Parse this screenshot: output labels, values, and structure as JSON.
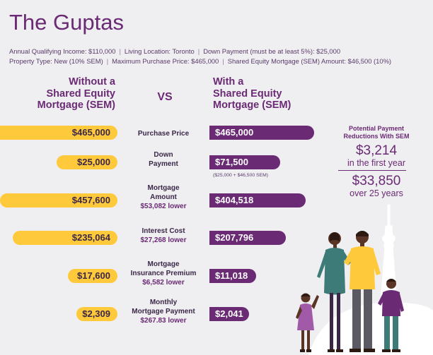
{
  "header": {
    "title": "The Guptas",
    "info_line_1": [
      "Annual Qualifying Income: $110,000",
      "Living Location: Toronto",
      "Down Payment (must be at least 5%): $25,000"
    ],
    "info_line_2": [
      "Property Type: New (10% SEM)",
      "Maximum Purchase Price: $465,000",
      "Shared Equity Mortgage (SEM) Amount: $46,500 (10%)"
    ],
    "separator": "|"
  },
  "columns": {
    "left_heading": [
      "Without a",
      "Shared Equity",
      "Mortgage (SEM)"
    ],
    "vs": "VS",
    "right_heading": [
      "With a",
      "Shared Equity",
      "Mortgage (SEM)"
    ]
  },
  "rows": [
    {
      "label": "Purchase Price",
      "without": "$465,000",
      "with": "$465,000",
      "difference": ""
    },
    {
      "label": "Down Payment",
      "without": "$25,000",
      "with": "$71,500",
      "difference": "",
      "note": "($25,000 + $46,500 SEM)"
    },
    {
      "label": "Mortgage Amount",
      "without": "$457,600",
      "with": "$404,518",
      "difference": "$53,082 lower"
    },
    {
      "label": "Interest Cost",
      "without": "$235,064",
      "with": "$207,796",
      "difference": "$27,268 lower"
    },
    {
      "label": "Mortgage Insurance Premium",
      "without": "$17,600",
      "with": "$11,018",
      "difference": "$6,582 lower"
    },
    {
      "label": "Monthly Mortgage Payment",
      "without": "$2,309",
      "with": "$2,041",
      "difference": "$267.83 lower"
    }
  ],
  "mid_labels": {
    "r0": [
      "Purchase Price"
    ],
    "r1": [
      "Down",
      "Payment"
    ],
    "r2": [
      "Mortgage",
      "Amount"
    ],
    "r3": [
      "Interest Cost"
    ],
    "r4": [
      "Mortgage",
      "Insurance Premium"
    ],
    "r5": [
      "Monthly",
      "Mortgage Payment"
    ]
  },
  "sidebar": {
    "heading": [
      "Potential Payment",
      "Reductions With SEM"
    ],
    "first_year_amount": "$3,214",
    "first_year_label": "in the first year",
    "total_amount": "$33,850",
    "total_label": "over 25 years"
  },
  "colors": {
    "title": "#6a2a74",
    "without_bar": "#ffc93c",
    "with_bar": "#6a2a74",
    "background": "#efeff1"
  },
  "illustration": {
    "icon": "family-and-cn-tower-illustration"
  }
}
